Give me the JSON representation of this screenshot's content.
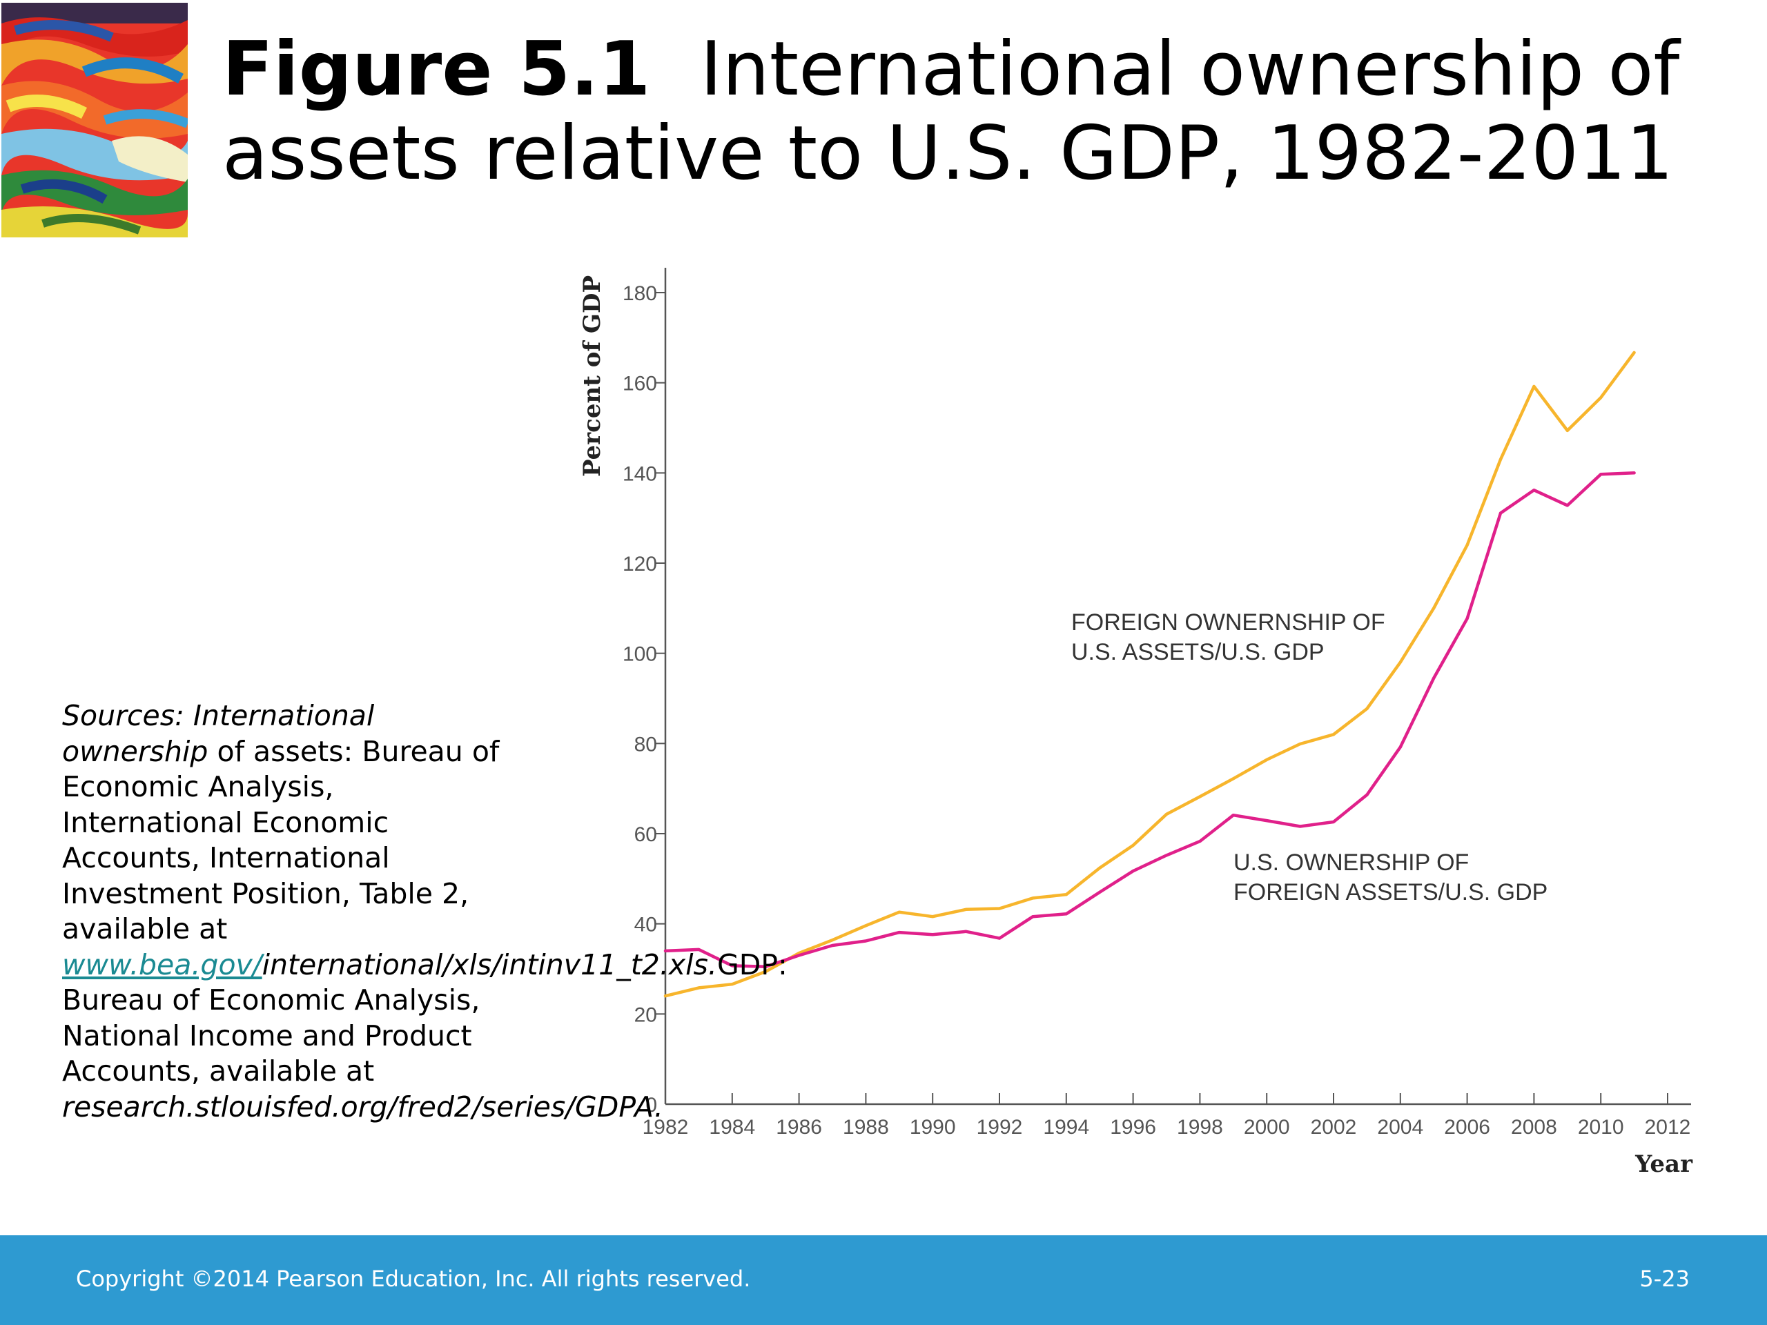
{
  "slide": {
    "title_prefix": "Figure 5.1",
    "title_line1": "International ownership of",
    "title_line2": "assets relative to U.S. GDP, 1982-2011"
  },
  "sources": {
    "part1_italic": "Sources: International ownership",
    "part2": " of assets: Bureau of Economic Analysis, International Economic Accounts, International Investment Position, Table 2, available at ",
    "link_text": "www.bea.gov/",
    "part3_italic": "international/xls/intinv11_t2.xls.",
    "part4": "GDP: Bureau of Economic Analysis, National Income and Product Accounts, available at ",
    "part5_italic": "research.stlouisfed.org/fred2/series/GDPA."
  },
  "footer": {
    "copyright": "Copyright ©2014 Pearson Education, Inc. All rights reserved.",
    "page_number": "5-23"
  },
  "colors": {
    "foreign_series": "#f7b52c",
    "us_series": "#e0208a",
    "footer_bg": "#2e9ad1"
  },
  "chart_data": {
    "type": "line",
    "title": "",
    "xlabel": "Year",
    "ylabel": "Percent of GDP",
    "xlim": [
      1982,
      2012
    ],
    "ylim": [
      0,
      180
    ],
    "x_ticks": [
      "1982",
      "1984",
      "1986",
      "1988",
      "1990",
      "1992",
      "1994",
      "1996",
      "1998",
      "2000",
      "2002",
      "2004",
      "2006",
      "2008",
      "2010",
      "2012"
    ],
    "y_ticks": [
      "0",
      "20",
      "40",
      "60",
      "80",
      "100",
      "120",
      "140",
      "160",
      "180"
    ],
    "grid": false,
    "x": [
      1982,
      1983,
      1984,
      1985,
      1986,
      1987,
      1988,
      1989,
      1990,
      1991,
      1992,
      1993,
      1994,
      1995,
      1996,
      1997,
      1998,
      1999,
      2000,
      2001,
      2002,
      2003,
      2004,
      2005,
      2006,
      2007,
      2008,
      2009,
      2010,
      2011
    ],
    "series": [
      {
        "annotation_line1": "FOREIGN OWNERNSHIP OF",
        "annotation_line2": "U.S. ASSETS/U.S. GDP",
        "color": "#f7b52c",
        "values": [
          24,
          25.8,
          26.6,
          29.4,
          33.5,
          36.4,
          39.6,
          42.6,
          41.6,
          43.2,
          43.4,
          45.7,
          46.5,
          52.4,
          57.4,
          64.3,
          68.2,
          72.2,
          76.4,
          79.9,
          82.0,
          87.7,
          98,
          110,
          124,
          143,
          159.2,
          149.4,
          156.7,
          166.7
        ]
      },
      {
        "annotation_line1": "U.S. OWNERSHIP OF",
        "annotation_line2": "FOREIGN ASSETS/U.S. GDP",
        "color": "#e0208a",
        "values": [
          34,
          34.3,
          30.7,
          30.5,
          33.0,
          35.2,
          36.2,
          38.1,
          37.6,
          38.3,
          36.8,
          41.6,
          42.2,
          47.0,
          51.7,
          55.2,
          58.3,
          64.1,
          62.9,
          61.6,
          62.6,
          68.6,
          79.2,
          94.5,
          107.7,
          131.1,
          136.2,
          132.8,
          139.7,
          140.0
        ]
      }
    ]
  }
}
